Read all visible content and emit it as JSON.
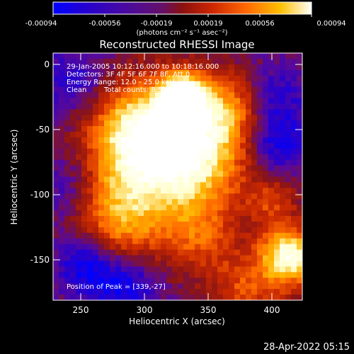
{
  "colorbar": {
    "tick_labels": [
      "-0.00094",
      "-0.00056",
      "-0.00019",
      "0.00019",
      "0.00056",
      "0.00094"
    ],
    "unit_label": "(photons cm⁻² s⁻¹ asec⁻²)",
    "range": [
      -0.00094,
      0.00094
    ]
  },
  "plot": {
    "title": "Reconstructed RHESSI Image",
    "xlabel": "Heliocentric X (arcsec)",
    "ylabel": "Heliocentric Y (arcsec)",
    "x_ticks": [
      "250",
      "300",
      "350",
      "400"
    ],
    "y_ticks": [
      "0",
      "-50",
      "-100",
      "-150"
    ],
    "x_range": [
      228,
      425
    ],
    "y_range": [
      -183,
      8
    ],
    "annotations": {
      "line1": "29-Jan-2005 10:12:16.000 to 10:18:16.000",
      "line2": "Detectors: 3F 4F 5F 6F 7F 8F, Att 0",
      "line3": "Energy Range: 12.0 - 25.0 keV",
      "clean": "Clean",
      "counts": "Total counts: 8.58E+03",
      "peak": "Position of Peak = [339,-27]"
    }
  },
  "footer": {
    "timestamp": "28-Apr-2022 05:15"
  },
  "colors": {
    "background": "#000000",
    "text": "#ffffff",
    "colormap": [
      "#0000ff",
      "#2a00c8",
      "#5a0a96",
      "#8a1414",
      "#c82800",
      "#ff6a00",
      "#ffb400",
      "#ffffcc",
      "#ffffff"
    ]
  }
}
